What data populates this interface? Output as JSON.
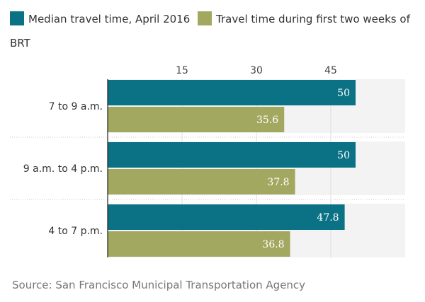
{
  "legend": {
    "series_1": "Median travel time, April 2016",
    "series_2": "Travel time during first two weeks of BRT"
  },
  "source": "Source: San Francisco Municipal Transportation Agency",
  "chart_data": {
    "type": "bar",
    "orientation": "horizontal",
    "categories": [
      "7 to 9 a.m.",
      "9 a.m. to 4 p.m.",
      "4 to 7 p.m."
    ],
    "series": [
      {
        "name": "Median travel time, April 2016",
        "values": [
          50,
          50,
          47.8
        ],
        "color": "#0b7285"
      },
      {
        "name": "Travel time during first two weeks of BRT",
        "values": [
          35.6,
          37.8,
          36.8
        ],
        "color": "#a3a861"
      }
    ],
    "xticks": [
      15,
      30,
      45
    ],
    "xlim": [
      0,
      60
    ],
    "xlabel": "",
    "ylabel": "",
    "grid": true,
    "legend_position": "top",
    "background_color": "#f3f3f3"
  }
}
